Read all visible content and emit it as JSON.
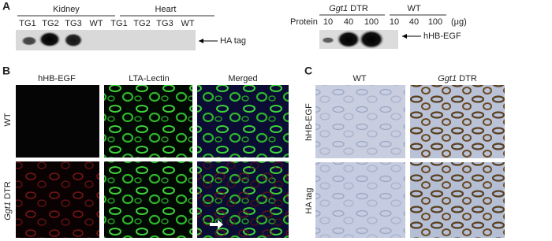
{
  "panel_a": {
    "label": "A",
    "kidney_blot": {
      "group_labels": [
        "Kidney",
        "Heart"
      ],
      "lanes": [
        "TG1",
        "TG2",
        "TG3",
        "WT",
        "TG1",
        "TG2",
        "TG3",
        "WT"
      ],
      "band_label": "HA tag"
    },
    "hhbegf_blot": {
      "group_dtr": {
        "gene": "Ggt1",
        "suffix": "DTR"
      },
      "group_wt": "WT",
      "row_label": "Protein",
      "lanes": [
        "10",
        "40",
        "100",
        "10",
        "40",
        "100"
      ],
      "unit": "(μg)",
      "band_label": "hHB-EGF"
    }
  },
  "panel_b": {
    "label": "B",
    "columns": [
      "hHB-EGF",
      "LTA-Lectin",
      "Merged"
    ],
    "rows": {
      "wt": "WT",
      "dtr": {
        "gene": "Ggt1",
        "suffix": "DTR"
      }
    }
  },
  "panel_c": {
    "label": "C",
    "columns": {
      "wt": "WT",
      "dtr": {
        "gene": "Ggt1",
        "suffix": "DTR"
      }
    },
    "rows": [
      "hHB-EGF",
      "HA tag"
    ]
  }
}
